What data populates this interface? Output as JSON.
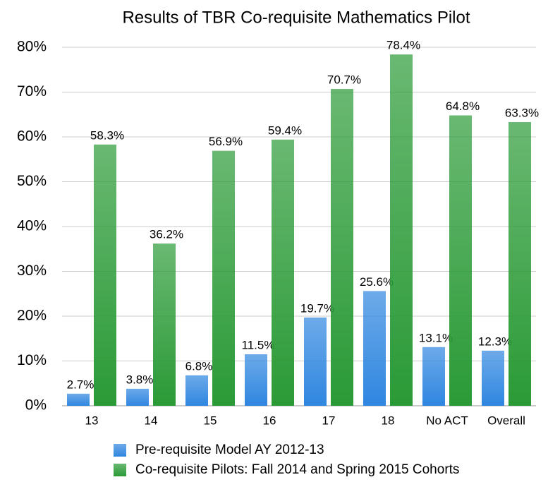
{
  "chart_data": {
    "type": "bar",
    "title": "Results of TBR Co-requisite Mathematics Pilot",
    "categories": [
      "13",
      "14",
      "15",
      "16",
      "17",
      "18",
      "No ACT",
      "Overall"
    ],
    "series": [
      {
        "name": "Pre-requisite Model AY 2012-13",
        "color": "#2f86e0",
        "values": [
          2.7,
          3.8,
          6.8,
          11.5,
          19.7,
          25.6,
          13.1,
          12.3
        ],
        "value_labels": [
          "2.7%",
          "3.8%",
          "6.8%",
          "11.5%",
          "19.7%",
          "25.6%",
          "13.1%",
          "12.3%"
        ]
      },
      {
        "name": "Co-requisite Pilots: Fall 2014 and Spring 2015 Cohorts",
        "color": "#2a9a36",
        "values": [
          58.3,
          36.2,
          56.9,
          59.4,
          70.7,
          78.4,
          64.8,
          63.3
        ],
        "value_labels": [
          "58.3%",
          "36.2%",
          "56.9%",
          "59.4%",
          "70.7%",
          "78.4%",
          "64.8%",
          "63.3%"
        ]
      }
    ],
    "ylim": [
      0,
      80
    ],
    "yticks": [
      {
        "value": 0,
        "label": "0%"
      },
      {
        "value": 10,
        "label": "10%"
      },
      {
        "value": 20,
        "label": "20%"
      },
      {
        "value": 30,
        "label": "30%"
      },
      {
        "value": 40,
        "label": "40%"
      },
      {
        "value": 50,
        "label": "50%"
      },
      {
        "value": 60,
        "label": "60%"
      },
      {
        "value": 70,
        "label": "70%"
      },
      {
        "value": 80,
        "label": "80%"
      }
    ],
    "grid": true
  }
}
